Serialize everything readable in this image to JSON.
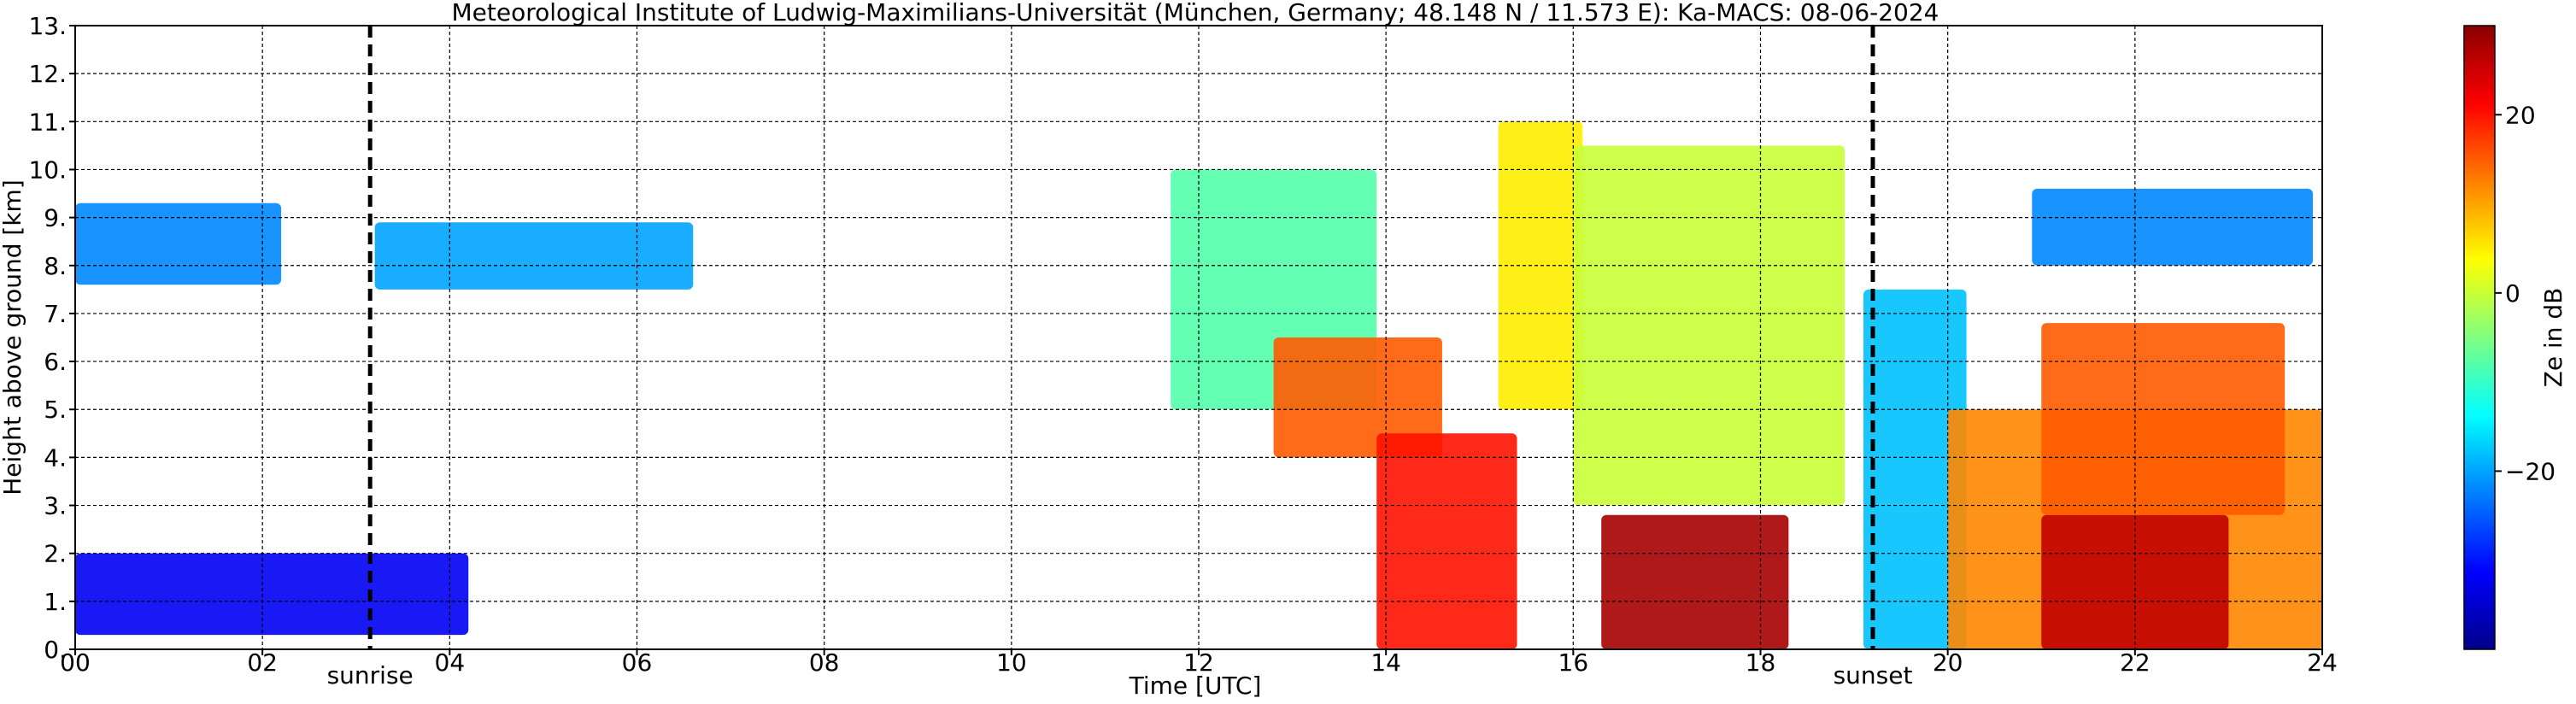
{
  "chart_data": {
    "type": "heatmap",
    "title": "Meteorological Institute of Ludwig-Maximilians-Universität (München, Germany; 48.148 N / 11.573 E):    Ka-MACS: 08-06-2024",
    "xlabel": "Time [UTC]",
    "ylabel": "Height above ground [km]",
    "xlim": [
      0,
      24
    ],
    "ylim": [
      0,
      13
    ],
    "x_ticks": [
      "00",
      "02",
      "04",
      "06",
      "08",
      "10",
      "12",
      "14",
      "16",
      "18",
      "20",
      "22",
      "24"
    ],
    "y_ticks": [
      "0.",
      "1.",
      "2.",
      "3.",
      "4.",
      "5.",
      "6.",
      "7.",
      "8.",
      "9.",
      "10.",
      "11.",
      "12.",
      "13."
    ],
    "grid": true,
    "markers": [
      {
        "label": "sunrise",
        "time": 3.15
      },
      {
        "label": "sunset",
        "time": 19.2
      }
    ],
    "colorbar": {
      "label": "Ze in dB",
      "range": [
        -40,
        30
      ],
      "ticks": [
        "20",
        "0",
        "−20"
      ],
      "colormap": "jet",
      "colors": [
        "#00008b",
        "#0000ff",
        "#0080ff",
        "#00ffff",
        "#80ff80",
        "#ffff00",
        "#ff8000",
        "#ff0000",
        "#8b0000"
      ]
    },
    "echoes": [
      {
        "t0": 0.0,
        "t1": 2.2,
        "h0": 7.6,
        "h1": 9.3,
        "ze": -22
      },
      {
        "t0": 3.2,
        "t1": 6.6,
        "h0": 7.5,
        "h1": 8.9,
        "ze": -20
      },
      {
        "t0": 0.0,
        "t1": 4.2,
        "h0": 0.3,
        "h1": 2.0,
        "ze": -32
      },
      {
        "t0": 11.7,
        "t1": 13.9,
        "h0": 5.0,
        "h1": 10.0,
        "ze": -8
      },
      {
        "t0": 12.8,
        "t1": 14.6,
        "h0": 4.0,
        "h1": 6.5,
        "ze": 15
      },
      {
        "t0": 13.9,
        "t1": 15.4,
        "h0": 0.0,
        "h1": 4.5,
        "ze": 20
      },
      {
        "t0": 15.2,
        "t1": 16.1,
        "h0": 5.0,
        "h1": 11.0,
        "ze": 5
      },
      {
        "t0": 16.0,
        "t1": 18.9,
        "h0": 3.0,
        "h1": 10.5,
        "ze": 0
      },
      {
        "t0": 16.3,
        "t1": 18.3,
        "h0": 0.0,
        "h1": 2.8,
        "ze": 28
      },
      {
        "t0": 19.1,
        "t1": 20.2,
        "h0": 0.0,
        "h1": 7.5,
        "ze": -18
      },
      {
        "t0": 20.0,
        "t1": 24.0,
        "h0": 0.0,
        "h1": 5.0,
        "ze": 12
      },
      {
        "t0": 21.0,
        "t1": 23.0,
        "h0": 0.0,
        "h1": 2.8,
        "ze": 26
      },
      {
        "t0": 21.0,
        "t1": 23.6,
        "h0": 2.8,
        "h1": 6.8,
        "ze": 15
      },
      {
        "t0": 20.9,
        "t1": 23.9,
        "h0": 8.0,
        "h1": 9.6,
        "ze": -22
      }
    ]
  }
}
